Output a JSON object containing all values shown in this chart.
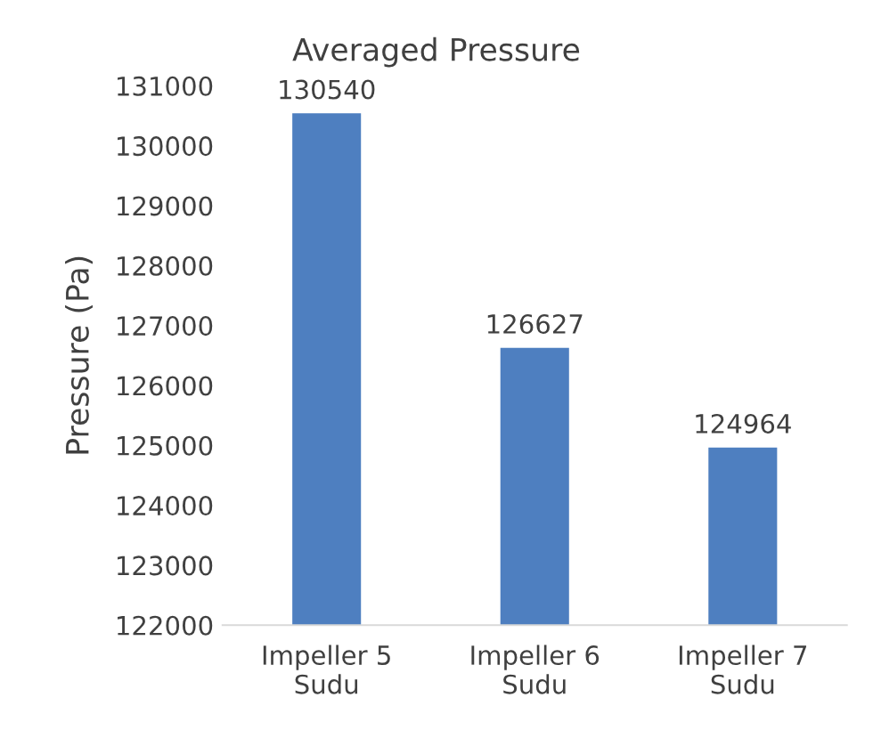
{
  "chart_data": {
    "type": "bar",
    "title": "Averaged Pressure",
    "ylabel": "Pressure (Pa)",
    "categories": [
      "Impeller 5 Sudu",
      "Impeller 6 Sudu",
      "Impeller 7 Sudu"
    ],
    "values": [
      130540,
      126627,
      124964
    ],
    "color": "#4e7fc0",
    "ylim": [
      122000,
      131000
    ],
    "yticks": [
      122000,
      123000,
      124000,
      125000,
      126000,
      127000,
      128000,
      129000,
      130000,
      131000
    ],
    "data_labels": true,
    "grid": false,
    "legend": false
  }
}
